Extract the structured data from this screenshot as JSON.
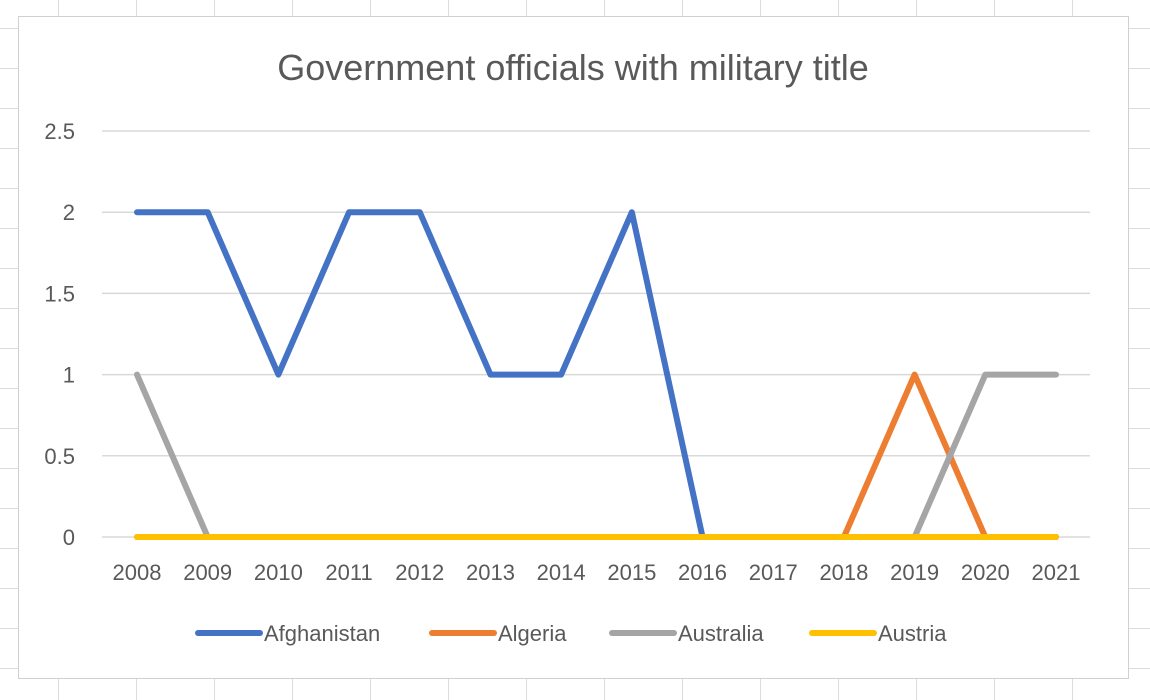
{
  "chart_data": {
    "type": "line",
    "title": "Government officials with military title",
    "xlabel": "",
    "ylabel": "",
    "categories": [
      "2008",
      "2009",
      "2010",
      "2011",
      "2012",
      "2013",
      "2014",
      "2015",
      "2016",
      "2017",
      "2018",
      "2019",
      "2020",
      "2021"
    ],
    "ylim": [
      0,
      2.5
    ],
    "yticks": [
      "0",
      "0.5",
      "1",
      "1.5",
      "2",
      "2.5"
    ],
    "grid": true,
    "legend_position": "bottom",
    "series": [
      {
        "name": "Afghanistan",
        "color": "#4472C4",
        "values": [
          2,
          2,
          1,
          2,
          2,
          1,
          1,
          2,
          0,
          0,
          0,
          0,
          0,
          0
        ]
      },
      {
        "name": "Algeria",
        "color": "#ED7D31",
        "values": [
          0,
          0,
          0,
          0,
          0,
          0,
          0,
          0,
          0,
          0,
          0,
          1,
          0,
          0
        ]
      },
      {
        "name": "Australia",
        "color": "#A5A5A5",
        "values": [
          1,
          0,
          0,
          0,
          0,
          0,
          0,
          0,
          0,
          0,
          0,
          0,
          1,
          1
        ]
      },
      {
        "name": "Austria",
        "color": "#FFC000",
        "values": [
          0,
          0,
          0,
          0,
          0,
          0,
          0,
          0,
          0,
          0,
          0,
          0,
          0,
          0
        ]
      }
    ]
  }
}
